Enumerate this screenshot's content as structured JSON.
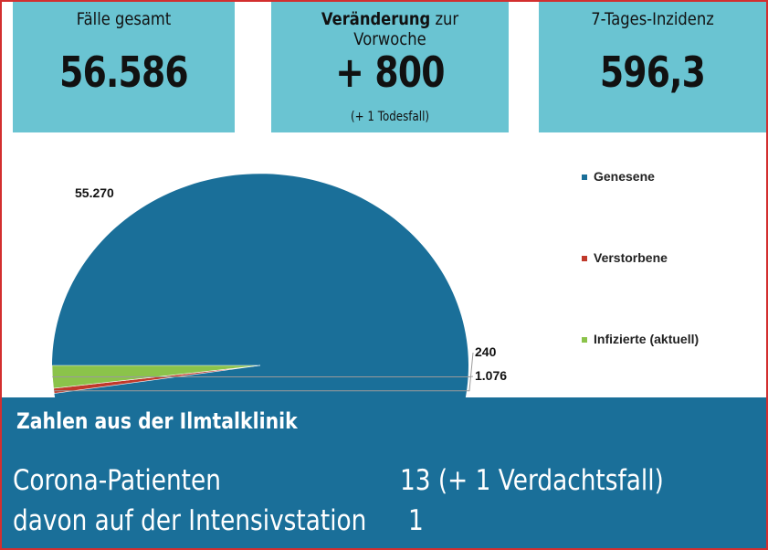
{
  "tiles": [
    {
      "label": "Fälle gesamt",
      "value": "56.586"
    },
    {
      "label_bold": "Veränderung",
      "label_rest": " zur Vorwoche",
      "value": "+ 800",
      "note": "(+ 1 Todesfall)"
    },
    {
      "label": "7-Tages-Inzidenz",
      "value": "596,3"
    }
  ],
  "colors": {
    "tile_bg": "#6ac4d2",
    "genesene": "#1a6f99",
    "verstorbene": "#c0392b",
    "infizierte": "#8bc34a",
    "bottom_bg": "#1a6f99",
    "frame": "#d32f2f"
  },
  "chart_data": {
    "type": "pie",
    "style": "3d-tilted",
    "labels": [
      "Genesene",
      "Verstorbene",
      "Infizierte (aktuell)"
    ],
    "values": [
      55270,
      240,
      1076
    ],
    "value_labels": [
      "55.270",
      "240",
      "1.076"
    ],
    "legend_position": "right"
  },
  "klinik": {
    "heading": "Zahlen aus der Ilmtalklinik",
    "rows": [
      {
        "label": "Corona-Patienten",
        "value": "13 (+ 1 Verdachtsfall)"
      },
      {
        "label": "davon auf der Intensivstation",
        "value": "1"
      }
    ]
  }
}
